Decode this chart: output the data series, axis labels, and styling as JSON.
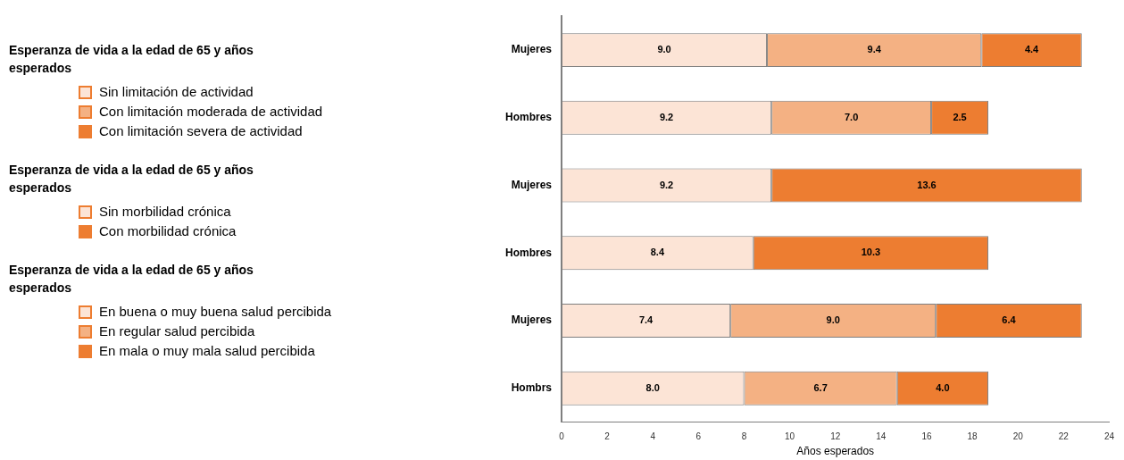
{
  "chart_data": {
    "type": "bar",
    "orientation": "horizontal",
    "stacked": true,
    "xlabel": "Años esperados",
    "categories": [
      "Mujeres",
      "Hombres",
      "Mujeres",
      "Hombres",
      "Mujeres",
      "Hombrs"
    ],
    "series": [
      {
        "name": "Sin limitación de actividad",
        "color": "#fce4d6",
        "values": [
          9.0,
          9.2,
          null,
          null,
          null,
          null
        ],
        "value_labels": [
          "9.0",
          "9.2",
          null,
          null,
          null,
          null
        ]
      },
      {
        "name": "Con limitación moderada de actividad",
        "color": "#f4b183",
        "values": [
          9.4,
          7.0,
          null,
          null,
          null,
          null
        ],
        "value_labels": [
          "9.4",
          "7.0",
          null,
          null,
          null,
          null
        ]
      },
      {
        "name": "Con limitación severa de actividad",
        "color": "#ed7d31",
        "values": [
          4.4,
          2.5,
          null,
          null,
          null,
          null
        ],
        "value_labels": [
          "4.4",
          "2.5",
          null,
          null,
          null,
          null
        ]
      },
      {
        "name": "Sin morbilidad crónica",
        "color": "#fce4d6",
        "values": [
          null,
          null,
          9.2,
          8.4,
          null,
          null
        ],
        "value_labels": [
          null,
          null,
          "9.2",
          "8.4",
          null,
          null
        ]
      },
      {
        "name": "Con morbilidad crónica",
        "color": "#ed7d31",
        "values": [
          null,
          null,
          13.6,
          10.3,
          null,
          null
        ],
        "value_labels": [
          null,
          null,
          "13.6",
          "10.3",
          null,
          null
        ]
      },
      {
        "name": "En buena o muy buena salud percibida",
        "color": "#fce4d6",
        "values": [
          null,
          null,
          null,
          null,
          7.4,
          8.0
        ],
        "value_labels": [
          null,
          null,
          null,
          null,
          "7.4",
          "8.0"
        ]
      },
      {
        "name": "En regular salud percibida",
        "color": "#f4b183",
        "values": [
          null,
          null,
          null,
          null,
          9.0,
          6.7
        ],
        "value_labels": [
          null,
          null,
          null,
          null,
          "9.0",
          "6.7"
        ]
      },
      {
        "name": "En mala o muy mala salud percibida",
        "color": "#ed7d31",
        "values": [
          null,
          null,
          null,
          null,
          6.4,
          4.0
        ],
        "value_labels": [
          null,
          null,
          null,
          null,
          "6.4",
          "4.0"
        ]
      }
    ],
    "annotations": [
      "Esperanza de vida a la edad de 65 y años esperados",
      "Esperanza de vida a la edad de 65 y años esperados",
      "Esperanza de vida a la edad de 65 y años esperados"
    ],
    "xlim": [
      0,
      24
    ],
    "xticks": [
      0,
      2,
      4,
      6,
      8,
      10,
      12,
      14,
      16,
      18,
      20,
      22,
      24
    ],
    "legend": "left",
    "grid": false
  }
}
